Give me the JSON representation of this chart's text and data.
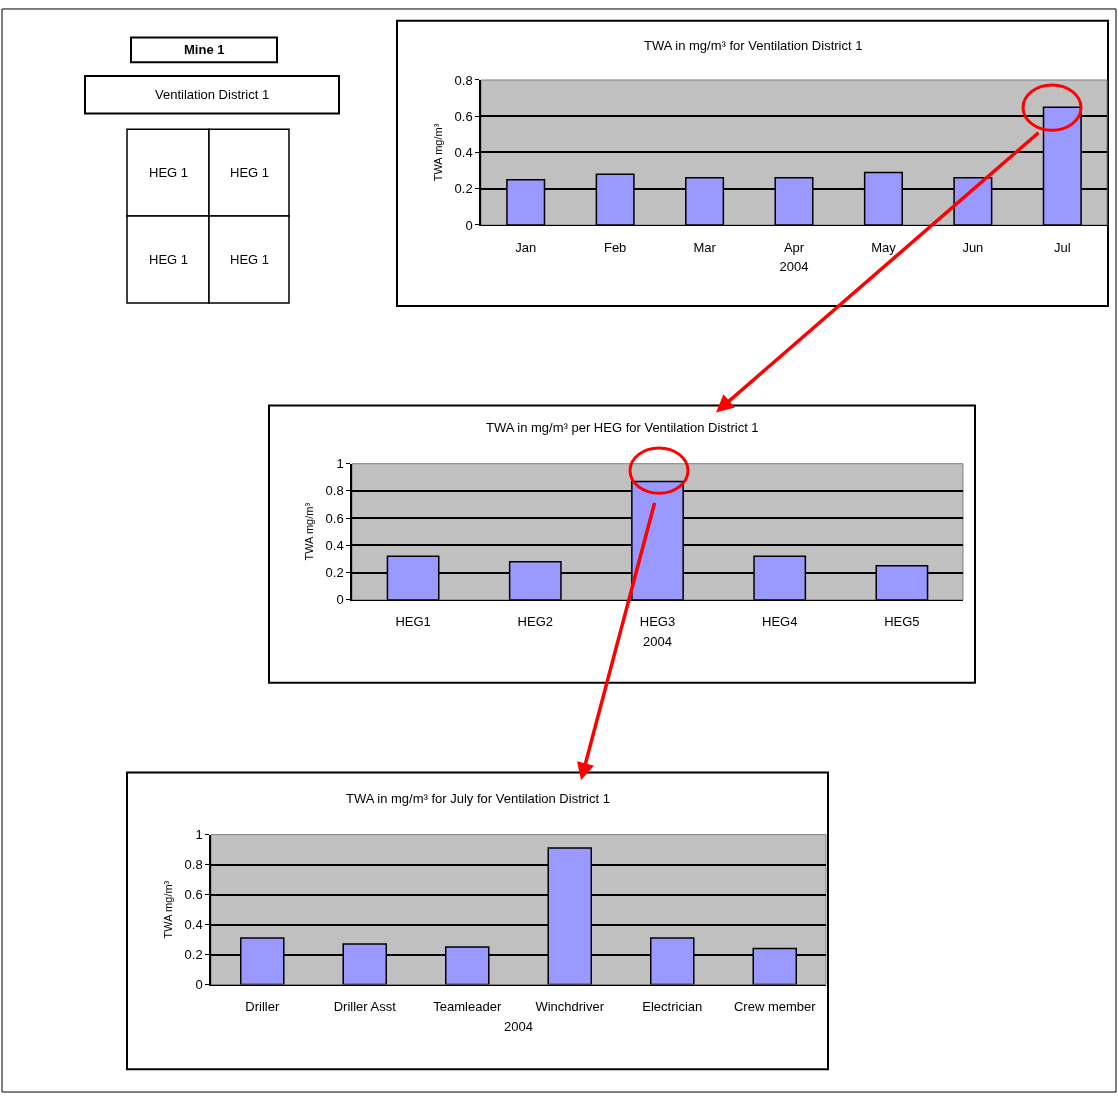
{
  "chart_data": [
    {
      "type": "other",
      "annotations": [
        "Mine 1",
        "Ventilation District 1",
        "HEG 1",
        "HEG 1",
        "HEG 1",
        "HEG 1"
      ]
    },
    {
      "type": "bar",
      "title": "TWA in mg/m³ for Ventilation District 1",
      "xlabel": "2004",
      "ylabel": "TWA mg/m³",
      "categories": [
        "Jan",
        "Feb",
        "Mar",
        "Apr",
        "May",
        "Jun",
        "Jul"
      ],
      "values": [
        0.25,
        0.28,
        0.26,
        0.26,
        0.29,
        0.26,
        0.65
      ],
      "color": "#9999ff",
      "ylim": [
        0,
        0.8
      ],
      "yticks": [
        0,
        0.2,
        0.4,
        0.6,
        0.8
      ],
      "grid": "y"
    },
    {
      "type": "bar",
      "title": "TWA in mg/m³ per HEG for Ventilation District 1",
      "xlabel": "2004",
      "ylabel": "TWA mg/m³",
      "categories": [
        "HEG1",
        "HEG2",
        "HEG3",
        "HEG4",
        "HEG5"
      ],
      "values": [
        0.32,
        0.28,
        0.87,
        0.32,
        0.25
      ],
      "color": "#9999ff",
      "ylim": [
        0,
        1
      ],
      "yticks": [
        0,
        0.2,
        0.4,
        0.6,
        0.8,
        1
      ],
      "grid": "y"
    },
    {
      "type": "bar",
      "title": "TWA in mg/m³ for July for Ventilation District 1",
      "xlabel": "2004",
      "ylabel": "TWA mg/m³",
      "categories": [
        "Driller",
        "Driller Asst",
        "Teamleader",
        "Winchdriver",
        "Electrician",
        "Crew member"
      ],
      "values": [
        0.31,
        0.27,
        0.25,
        0.91,
        0.31,
        0.24
      ],
      "color": "#9999ff",
      "ylim": [
        0,
        1
      ],
      "yticks": [
        0,
        0.2,
        0.4,
        0.6,
        0.8,
        1
      ],
      "grid": "y"
    }
  ]
}
